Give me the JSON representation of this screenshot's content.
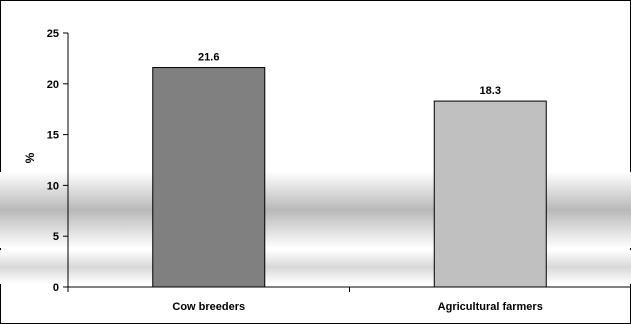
{
  "chart_data": {
    "type": "bar",
    "categories": [
      "Cow breeders",
      "Agricultural farmers"
    ],
    "values": [
      21.6,
      18.3
    ],
    "value_labels": [
      "21.6",
      "18.3"
    ],
    "title": "",
    "xlabel": "",
    "ylabel": "%",
    "ylim": [
      0,
      25
    ],
    "yticks": [
      0,
      5,
      10,
      15,
      20,
      25
    ],
    "grid": false,
    "legend": "none",
    "bar_colors": [
      "#808080",
      "#c0c0c0"
    ]
  }
}
